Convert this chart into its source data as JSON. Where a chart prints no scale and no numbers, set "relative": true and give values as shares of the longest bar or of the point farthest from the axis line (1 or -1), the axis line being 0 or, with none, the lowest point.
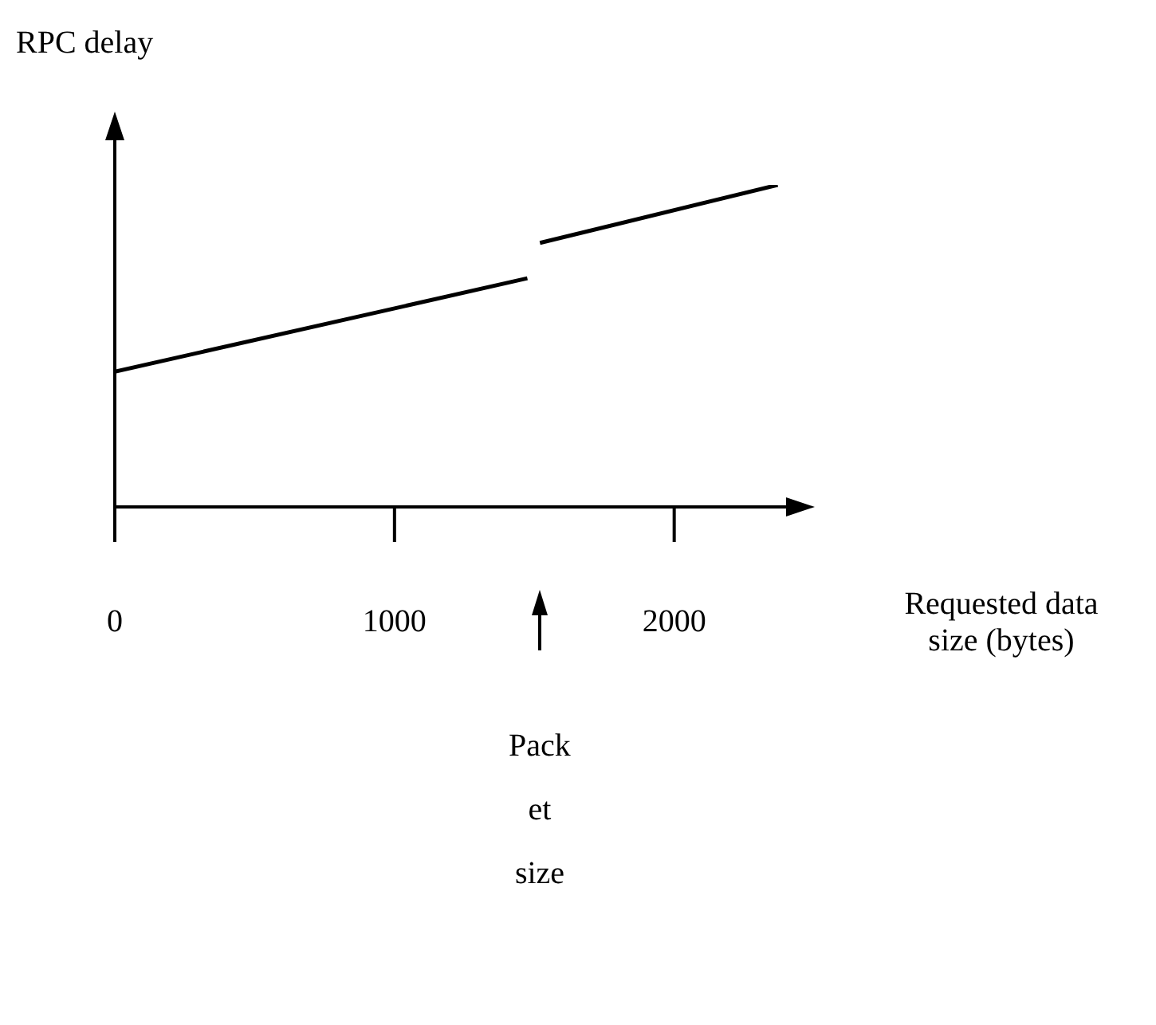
{
  "chart_data": {
    "type": "line",
    "relative": true,
    "ylabel": "RPC delay",
    "xlabel": "Requested data size (bytes)",
    "xlim": [
      0,
      2400
    ],
    "xticks": [
      0,
      1000,
      2000
    ],
    "marker": "none",
    "line_style": "solid",
    "series": [
      {
        "color": "#000000",
        "x": [
          0,
          1475
        ],
        "values": [
          0.42,
          0.71
        ]
      },
      {
        "color": "#000000",
        "x": [
          1520,
          2370
        ],
        "values": [
          0.82,
          1
        ]
      }
    ],
    "annotations": [
      "Pack\net\nsize"
    ]
  }
}
